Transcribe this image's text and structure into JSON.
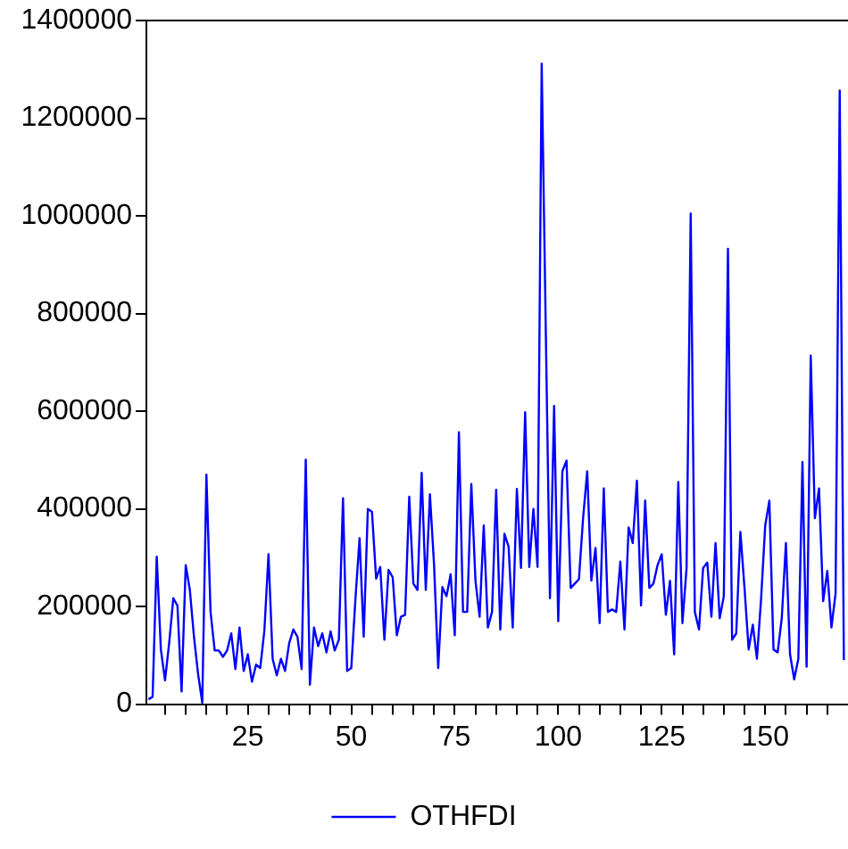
{
  "chart_data": {
    "type": "line",
    "x": [
      1,
      2,
      3,
      4,
      5,
      6,
      7,
      8,
      9,
      10,
      11,
      12,
      13,
      14,
      15,
      16,
      17,
      18,
      19,
      20,
      21,
      22,
      23,
      24,
      25,
      26,
      27,
      28,
      29,
      30,
      31,
      32,
      33,
      34,
      35,
      36,
      37,
      38,
      39,
      40,
      41,
      42,
      43,
      44,
      45,
      46,
      47,
      48,
      49,
      50,
      51,
      52,
      53,
      54,
      55,
      56,
      57,
      58,
      59,
      60,
      61,
      62,
      63,
      64,
      65,
      66,
      67,
      68,
      69,
      70,
      71,
      72,
      73,
      74,
      75,
      76,
      77,
      78,
      79,
      80,
      81,
      82,
      83,
      84,
      85,
      86,
      87,
      88,
      89,
      90,
      91,
      92,
      93,
      94,
      95,
      96,
      97,
      98,
      99,
      100,
      101,
      102,
      103,
      104,
      105,
      106,
      107,
      108,
      109,
      110,
      111,
      112,
      113,
      114,
      115,
      116,
      117,
      118,
      119,
      120,
      121,
      122,
      123,
      124,
      125,
      126,
      127,
      128,
      129,
      130,
      131,
      132,
      133,
      134,
      135,
      136,
      137,
      138,
      139,
      140,
      141,
      142,
      143,
      144,
      145,
      146,
      147,
      148,
      149,
      150,
      151,
      152,
      153,
      154,
      155,
      156,
      157,
      158,
      159,
      160,
      161,
      162,
      163,
      164,
      165,
      166,
      167,
      168,
      169
    ],
    "series": [
      {
        "name": "OTHFDI",
        "color": "#0000ff",
        "values": [
          10000,
          15000,
          302000,
          112000,
          49000,
          125000,
          217000,
          202000,
          26000,
          285000,
          234000,
          138000,
          61000,
          3000,
          470000,
          189000,
          110000,
          110000,
          97000,
          110000,
          145000,
          72000,
          157000,
          68000,
          102000,
          46000,
          81000,
          74000,
          150000,
          307000,
          93000,
          59000,
          93000,
          68000,
          125000,
          153000,
          138000,
          72000,
          501000,
          40000,
          157000,
          119000,
          145000,
          106000,
          149000,
          110000,
          132000,
          422000,
          68000,
          74000,
          215000,
          340000,
          138000,
          400000,
          394000,
          257000,
          281000,
          132000,
          275000,
          260000,
          141000,
          179000,
          183000,
          425000,
          247000,
          234000,
          474000,
          234000,
          430000,
          285000,
          74000,
          240000,
          221000,
          266000,
          141000,
          557000,
          189000,
          189000,
          451000,
          253000,
          179000,
          366000,
          157000,
          189000,
          439000,
          153000,
          349000,
          323000,
          157000,
          441000,
          279000,
          598000,
          281000,
          400000,
          281000,
          1312000,
          760000,
          217000,
          611000,
          170000,
          477000,
          499000,
          238000,
          247000,
          256000,
          381000,
          477000,
          253000,
          320000,
          166000,
          442000,
          189000,
          194000,
          189000,
          292000,
          153000,
          362000,
          330000,
          458000,
          202000,
          417000,
          238000,
          247000,
          285000,
          307000,
          183000,
          253000,
          102000,
          455000,
          166000,
          279000,
          1005000,
          189000,
          153000,
          279000,
          290000,
          179000,
          330000,
          176000,
          221000,
          933000,
          132000,
          145000,
          353000,
          238000,
          112000,
          163000,
          93000,
          215000,
          366000,
          417000,
          112000,
          106000,
          176000,
          330000,
          102000,
          51000,
          93000,
          496000,
          77000,
          714000,
          381000,
          442000,
          211000,
          273000,
          157000,
          227000,
          1257000,
          90000
        ]
      }
    ],
    "xlim": [
      0.5,
      170
    ],
    "xticks": [
      {
        "value": 5,
        "label": null
      },
      {
        "value": 10,
        "label": null
      },
      {
        "value": 15,
        "label": null
      },
      {
        "value": 20,
        "label": null
      },
      25,
      {
        "value": 30,
        "label": null
      },
      {
        "value": 35,
        "label": null
      },
      {
        "value": 40,
        "label": null
      },
      {
        "value": 45,
        "label": null
      },
      50,
      {
        "value": 55,
        "label": null
      },
      {
        "value": 60,
        "label": null
      },
      {
        "value": 65,
        "label": null
      },
      {
        "value": 70,
        "label": null
      },
      75,
      {
        "value": 80,
        "label": null
      },
      {
        "value": 85,
        "label": null
      },
      {
        "value": 90,
        "label": null
      },
      {
        "value": 95,
        "label": null
      },
      100,
      {
        "value": 105,
        "label": null
      },
      {
        "value": 110,
        "label": null
      },
      {
        "value": 115,
        "label": null
      },
      {
        "value": 120,
        "label": null
      },
      125,
      {
        "value": 130,
        "label": null
      },
      {
        "value": 135,
        "label": null
      },
      {
        "value": 140,
        "label": null
      },
      {
        "value": 145,
        "label": null
      },
      150,
      {
        "value": 155,
        "label": null
      },
      {
        "value": 160,
        "label": null
      },
      {
        "value": 165,
        "label": null
      }
    ],
    "ylim": [
      0,
      1400000
    ],
    "yticks": [
      0,
      200000,
      400000,
      600000,
      800000,
      1000000,
      1200000,
      1400000
    ],
    "legend": "bottom",
    "line_style": "solid"
  }
}
